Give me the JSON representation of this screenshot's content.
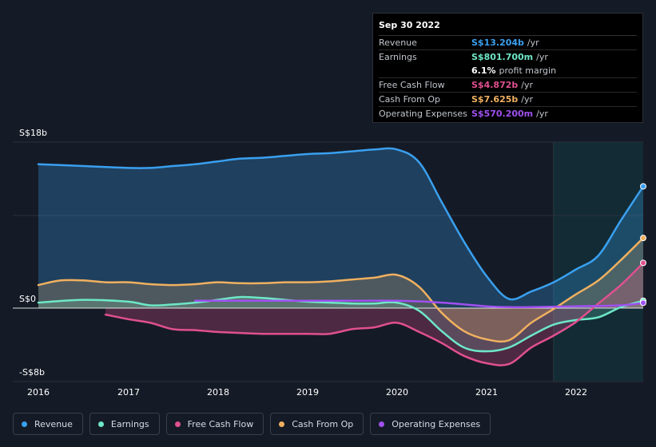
{
  "tooltip": {
    "date": "Sep 30 2022",
    "rows": [
      {
        "label": "Revenue",
        "value": "S$13.204b",
        "unit": "/yr",
        "color": "#3aa0f0"
      },
      {
        "label": "Earnings",
        "value": "S$801.700m",
        "unit": "/yr",
        "color": "#6ee7c7"
      },
      {
        "label": "",
        "value": "6.1%",
        "unit": "profit margin",
        "color": "#ffffff"
      },
      {
        "label": "Free Cash Flow",
        "value": "S$4.872b",
        "unit": "/yr",
        "color": "#e0508f"
      },
      {
        "label": "Cash From Op",
        "value": "S$7.625b",
        "unit": "/yr",
        "color": "#f0b060"
      },
      {
        "label": "Operating Expenses",
        "value": "S$570.200m",
        "unit": "/yr",
        "color": "#a050f0"
      }
    ]
  },
  "chart_data": {
    "type": "area",
    "ylim": [
      -8,
      18
    ],
    "y_tick_labels": [
      "S$18b",
      "S$0",
      "-S$8b"
    ],
    "x_tick_labels": [
      "2016",
      "2017",
      "2018",
      "2019",
      "2020",
      "2021",
      "2022"
    ],
    "forecast_start": 2021.75,
    "series": [
      {
        "name": "Revenue",
        "color": "#3aa0f0",
        "fill": true,
        "x": [
          2016.0,
          2016.5,
          2017.0,
          2017.25,
          2017.5,
          2017.75,
          2018.0,
          2018.25,
          2018.5,
          2018.75,
          2019.0,
          2019.25,
          2019.5,
          2019.75,
          2020.0,
          2020.25,
          2020.5,
          2020.75,
          2021.0,
          2021.25,
          2021.5,
          2021.75,
          2022.0,
          2022.25,
          2022.5,
          2022.75
        ],
        "y": [
          15.6,
          15.4,
          15.2,
          15.2,
          15.4,
          15.6,
          15.9,
          16.2,
          16.3,
          16.5,
          16.7,
          16.8,
          17.0,
          17.2,
          17.2,
          15.8,
          11.5,
          7.2,
          3.5,
          1.0,
          1.8,
          2.8,
          4.2,
          5.7,
          9.5,
          13.2
        ]
      },
      {
        "name": "Earnings",
        "color": "#6ee7c7",
        "fill": true,
        "x": [
          2016.0,
          2016.5,
          2017.0,
          2017.25,
          2017.5,
          2017.75,
          2018.0,
          2018.25,
          2018.5,
          2018.75,
          2019.0,
          2019.25,
          2019.5,
          2019.75,
          2020.0,
          2020.25,
          2020.5,
          2020.75,
          2021.0,
          2021.25,
          2021.5,
          2021.75,
          2022.0,
          2022.25,
          2022.5,
          2022.75
        ],
        "y": [
          0.6,
          0.9,
          0.7,
          0.3,
          0.4,
          0.6,
          0.9,
          1.2,
          1.1,
          0.9,
          0.7,
          0.6,
          0.5,
          0.5,
          0.6,
          -0.3,
          -2.5,
          -4.3,
          -4.7,
          -4.3,
          -3.0,
          -1.8,
          -1.3,
          -1.0,
          0.1,
          0.8
        ]
      },
      {
        "name": "Free Cash Flow",
        "color": "#e0508f",
        "fill": true,
        "x": [
          2016.75,
          2017.0,
          2017.25,
          2017.5,
          2017.75,
          2018.0,
          2018.25,
          2018.5,
          2018.75,
          2019.0,
          2019.25,
          2019.5,
          2019.75,
          2020.0,
          2020.25,
          2020.5,
          2020.75,
          2021.0,
          2021.25,
          2021.5,
          2021.75,
          2022.0,
          2022.25,
          2022.5,
          2022.75
        ],
        "y": [
          -0.7,
          -1.2,
          -1.6,
          -2.3,
          -2.4,
          -2.6,
          -2.7,
          -2.8,
          -2.8,
          -2.8,
          -2.8,
          -2.3,
          -2.1,
          -1.6,
          -2.6,
          -3.8,
          -5.2,
          -6.0,
          -6.1,
          -4.3,
          -3.0,
          -1.5,
          0.5,
          2.5,
          4.9
        ]
      },
      {
        "name": "Cash From Op",
        "color": "#f0b060",
        "fill": true,
        "x": [
          2016.0,
          2016.25,
          2016.5,
          2016.75,
          2017.0,
          2017.25,
          2017.5,
          2017.75,
          2018.0,
          2018.25,
          2018.5,
          2018.75,
          2019.0,
          2019.25,
          2019.5,
          2019.75,
          2020.0,
          2020.25,
          2020.5,
          2020.75,
          2021.0,
          2021.25,
          2021.5,
          2021.75,
          2022.0,
          2022.25,
          2022.5,
          2022.75
        ],
        "y": [
          2.5,
          3.0,
          3.0,
          2.8,
          2.8,
          2.6,
          2.5,
          2.6,
          2.8,
          2.7,
          2.7,
          2.8,
          2.8,
          2.9,
          3.1,
          3.3,
          3.6,
          2.3,
          -0.5,
          -2.5,
          -3.4,
          -3.5,
          -1.6,
          -0.1,
          1.5,
          3.0,
          5.2,
          7.6
        ]
      },
      {
        "name": "Operating Expenses",
        "color": "#a050f0",
        "fill": false,
        "x": [
          2017.75,
          2018.0,
          2018.5,
          2019.0,
          2019.5,
          2020.0,
          2020.5,
          2021.0,
          2021.25,
          2021.5,
          2022.0,
          2022.5,
          2022.75
        ],
        "y": [
          0.8,
          0.8,
          0.8,
          0.8,
          0.8,
          0.8,
          0.6,
          0.2,
          0.1,
          0.1,
          0.2,
          0.3,
          0.57
        ]
      }
    ]
  },
  "legend": {
    "items": [
      {
        "label": "Revenue",
        "color": "#3aa0f0"
      },
      {
        "label": "Earnings",
        "color": "#6ee7c7"
      },
      {
        "label": "Free Cash Flow",
        "color": "#e0508f"
      },
      {
        "label": "Cash From Op",
        "color": "#f0b060"
      },
      {
        "label": "Operating Expenses",
        "color": "#a050f0"
      }
    ]
  }
}
